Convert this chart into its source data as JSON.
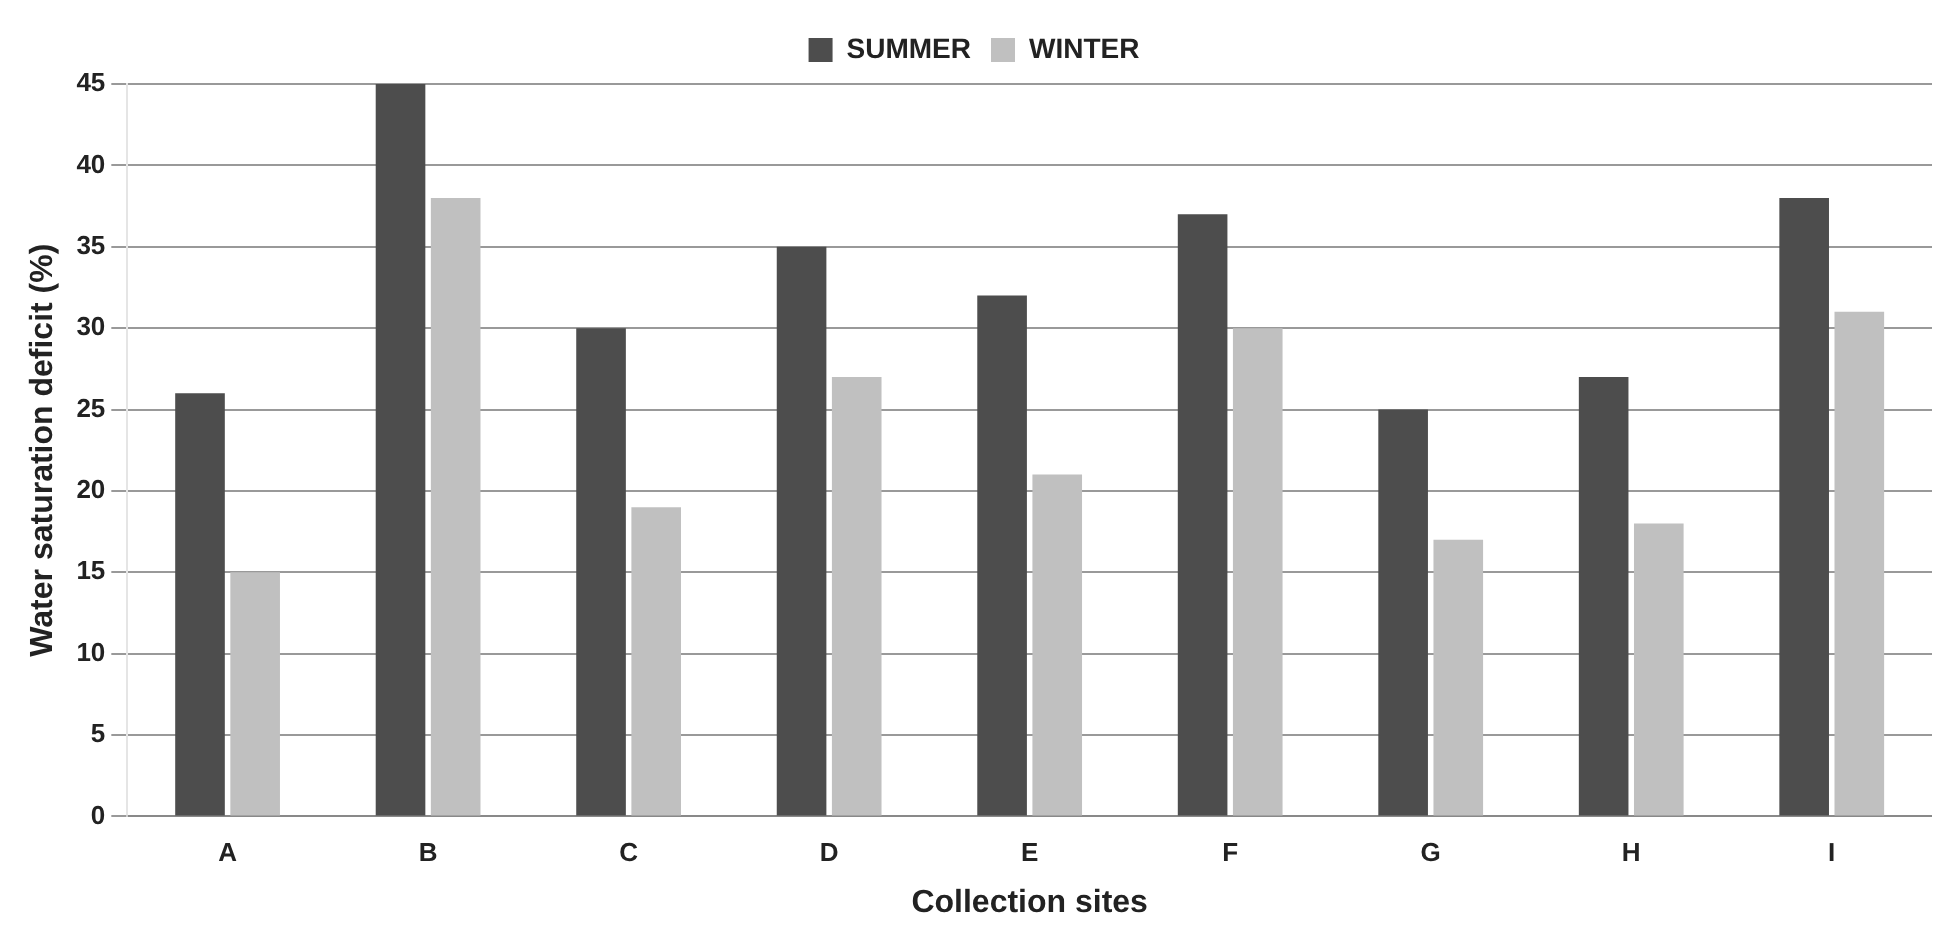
{
  "chart_data": {
    "type": "bar",
    "xlabel": "Collection sites",
    "ylabel": "Water saturation deficit (%)",
    "categories": [
      "A",
      "B",
      "C",
      "D",
      "E",
      "F",
      "G",
      "H",
      "I"
    ],
    "series": [
      {
        "name": "SUMMER",
        "color": "#4d4d4d",
        "values": [
          26,
          45,
          30,
          35,
          32,
          37,
          25,
          27,
          38
        ]
      },
      {
        "name": "WINTER",
        "color": "#c0c0c0",
        "values": [
          15,
          38,
          19,
          27,
          21,
          30,
          17,
          18,
          31
        ]
      }
    ],
    "ylim": [
      0,
      45
    ],
    "yticks": [
      0,
      5,
      10,
      15,
      20,
      25,
      30,
      35,
      40,
      45
    ],
    "grid": "y",
    "legend": "top"
  }
}
